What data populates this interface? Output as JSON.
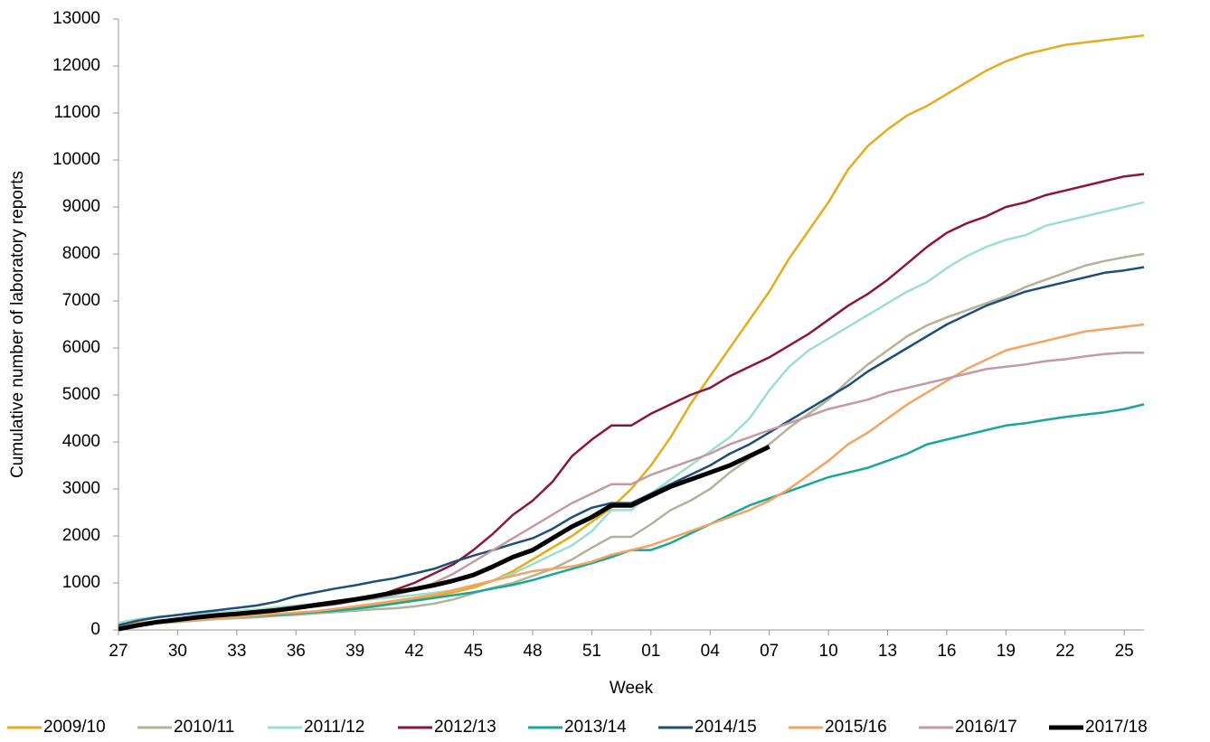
{
  "chart_data": {
    "type": "line",
    "y_label": "Cumulative number of laboratory reports",
    "x_label": "Week",
    "categories": [
      "27",
      null,
      null,
      "30",
      null,
      null,
      "33",
      null,
      null,
      "36",
      null,
      null,
      "39",
      null,
      null,
      "42",
      null,
      null,
      "45",
      null,
      null,
      "48",
      null,
      null,
      "51",
      null,
      null,
      "01",
      null,
      null,
      "04",
      null,
      null,
      "07",
      null,
      null,
      "10",
      null,
      null,
      "13",
      null,
      null,
      "16",
      null,
      null,
      "19",
      null,
      null,
      "22",
      null,
      null,
      "25",
      null
    ],
    "ylim": [
      0,
      13000
    ],
    "yticks": [
      0,
      1000,
      2000,
      3000,
      4000,
      5000,
      6000,
      7000,
      8000,
      9000,
      10000,
      11000,
      12000,
      13000
    ],
    "grid": false,
    "legend": "bottom",
    "series": [
      {
        "name": "2009/10",
        "color": "#e6ac1c",
        "values": [
          100,
          150,
          190,
          220,
          250,
          270,
          290,
          310,
          330,
          350,
          380,
          420,
          470,
          530,
          590,
          650,
          720,
          800,
          900,
          1050,
          1250,
          1500,
          1750,
          2000,
          2300,
          2600,
          3000,
          3500,
          4100,
          4800,
          5400,
          6000,
          6600,
          7200,
          7900,
          8500,
          9100,
          9800,
          10300,
          10650,
          10950,
          11150,
          11400,
          11650,
          11900,
          12100,
          12250,
          12350,
          12450,
          12500,
          12550,
          12600,
          12650
        ]
      },
      {
        "name": "2010/11",
        "color": "#b3b39a",
        "values": [
          50,
          100,
          140,
          170,
          200,
          230,
          250,
          270,
          300,
          320,
          350,
          380,
          410,
          440,
          460,
          500,
          560,
          650,
          780,
          900,
          1000,
          1150,
          1300,
          1500,
          1750,
          1980,
          1980,
          2250,
          2550,
          2750,
          3000,
          3350,
          3650,
          3950,
          4300,
          4600,
          4900,
          5300,
          5650,
          5950,
          6250,
          6480,
          6650,
          6800,
          6950,
          7100,
          7300,
          7450,
          7600,
          7750,
          7850,
          7930,
          8000
        ]
      },
      {
        "name": "2011/12",
        "color": "#9cdfd0",
        "values": [
          150,
          230,
          280,
          310,
          340,
          370,
          400,
          430,
          480,
          520,
          550,
          580,
          620,
          660,
          700,
          740,
          790,
          840,
          950,
          1050,
          1200,
          1400,
          1600,
          1800,
          2100,
          2550,
          2550,
          2900,
          3200,
          3500,
          3800,
          4100,
          4500,
          5100,
          5600,
          5950,
          6200,
          6450,
          6700,
          6950,
          7200,
          7400,
          7700,
          7950,
          8150,
          8300,
          8400,
          8600,
          8700,
          8800,
          8900,
          9000,
          9100
        ]
      },
      {
        "name": "2012/13",
        "color": "#8e1538",
        "values": [
          50,
          120,
          170,
          210,
          250,
          290,
          320,
          360,
          400,
          450,
          500,
          550,
          620,
          700,
          850,
          1000,
          1200,
          1400,
          1700,
          2050,
          2450,
          2750,
          3150,
          3700,
          4050,
          4350,
          4350,
          4600,
          4800,
          5000,
          5150,
          5400,
          5600,
          5800,
          6050,
          6300,
          6600,
          6900,
          7150,
          7450,
          7800,
          8150,
          8450,
          8650,
          8800,
          9000,
          9100,
          9250,
          9350,
          9450,
          9550,
          9650,
          9700
        ]
      },
      {
        "name": "2013/14",
        "color": "#16a89a",
        "values": [
          50,
          110,
          160,
          200,
          230,
          260,
          280,
          300,
          320,
          350,
          380,
          410,
          450,
          500,
          560,
          620,
          680,
          740,
          800,
          880,
          960,
          1060,
          1180,
          1300,
          1420,
          1550,
          1700,
          1700,
          1850,
          2050,
          2250,
          2450,
          2650,
          2800,
          2950,
          3100,
          3250,
          3350,
          3450,
          3600,
          3750,
          3950,
          4050,
          4150,
          4250,
          4350,
          4400,
          4470,
          4530,
          4580,
          4630,
          4700,
          4800
        ]
      },
      {
        "name": "2014/15",
        "color": "#1f4e79",
        "values": [
          100,
          200,
          270,
          320,
          370,
          420,
          470,
          520,
          600,
          720,
          800,
          880,
          950,
          1030,
          1100,
          1200,
          1300,
          1450,
          1580,
          1700,
          1830,
          1950,
          2150,
          2400,
          2600,
          2700,
          2700,
          2900,
          3100,
          3300,
          3500,
          3750,
          3950,
          4200,
          4450,
          4700,
          4950,
          5200,
          5500,
          5750,
          6000,
          6250,
          6500,
          6700,
          6900,
          7050,
          7200,
          7300,
          7400,
          7500,
          7600,
          7650,
          7720
        ]
      },
      {
        "name": "2015/16",
        "color": "#f4a460",
        "values": [
          50,
          100,
          150,
          190,
          220,
          250,
          280,
          310,
          340,
          370,
          400,
          450,
          500,
          560,
          620,
          680,
          750,
          850,
          950,
          1050,
          1150,
          1250,
          1300,
          1350,
          1450,
          1600,
          1700,
          1800,
          1950,
          2100,
          2250,
          2400,
          2550,
          2750,
          3000,
          3300,
          3600,
          3950,
          4200,
          4500,
          4800,
          5050,
          5300,
          5550,
          5750,
          5950,
          6050,
          6150,
          6250,
          6350,
          6400,
          6450,
          6500
        ]
      },
      {
        "name": "2016/17",
        "color": "#c49aa3",
        "values": [
          50,
          120,
          180,
          230,
          270,
          310,
          350,
          390,
          430,
          470,
          520,
          570,
          620,
          680,
          750,
          850,
          1000,
          1200,
          1450,
          1700,
          1950,
          2200,
          2450,
          2700,
          2900,
          3100,
          3100,
          3300,
          3450,
          3600,
          3750,
          3950,
          4100,
          4250,
          4400,
          4550,
          4700,
          4800,
          4900,
          5050,
          5150,
          5250,
          5350,
          5450,
          5550,
          5600,
          5650,
          5720,
          5760,
          5820,
          5870,
          5900,
          5900
        ]
      },
      {
        "name": "2017/18",
        "color": "#000000",
        "values": [
          20,
          100,
          170,
          220,
          270,
          310,
          340,
          380,
          420,
          470,
          530,
          590,
          650,
          720,
          800,
          870,
          950,
          1050,
          1170,
          1350,
          1550,
          1700,
          1950,
          2200,
          2400,
          2650,
          2650,
          2850,
          3050,
          3200,
          3350,
          3500,
          3700,
          3900,
          null,
          null,
          null,
          null,
          null,
          null,
          null,
          null,
          null,
          null,
          null,
          null,
          null,
          null,
          null,
          null,
          null,
          null,
          null
        ]
      }
    ]
  }
}
